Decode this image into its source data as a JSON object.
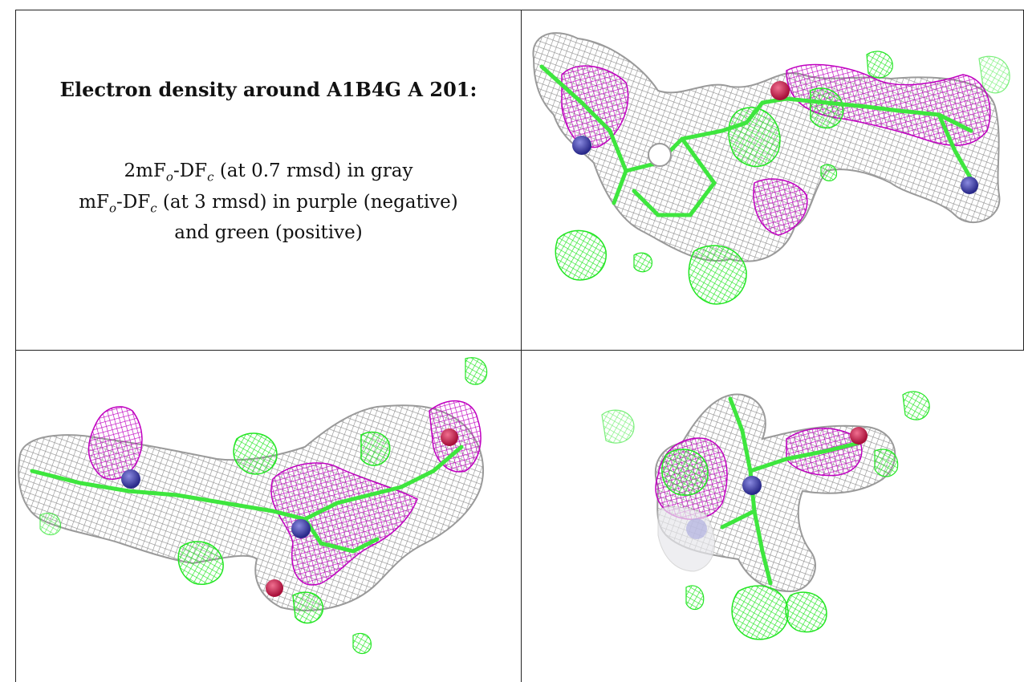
{
  "caption": {
    "title": "Electron density around A1B4G A 201:",
    "line1": {
      "a": "2mF",
      "a_sub": "o",
      "b": "-DF",
      "b_sub": "c",
      "rest": " (at 0.7 rmsd) in gray"
    },
    "line2": {
      "a": "mF",
      "a_sub": "o",
      "b": "-DF",
      "b_sub": "c",
      "rest": " (at 3 rmsd) in purple (negative)"
    },
    "line3": "and green (positive)"
  },
  "colors": {
    "mesh_2fo": "#8a8a8a",
    "negative": "#c000c0",
    "positive": "#22e622",
    "nitrogen": "#3a3aa8",
    "oxygen": "#c8204a"
  },
  "views": [
    {
      "name": "view-top-right"
    },
    {
      "name": "view-bottom-left"
    },
    {
      "name": "view-bottom-right"
    }
  ]
}
